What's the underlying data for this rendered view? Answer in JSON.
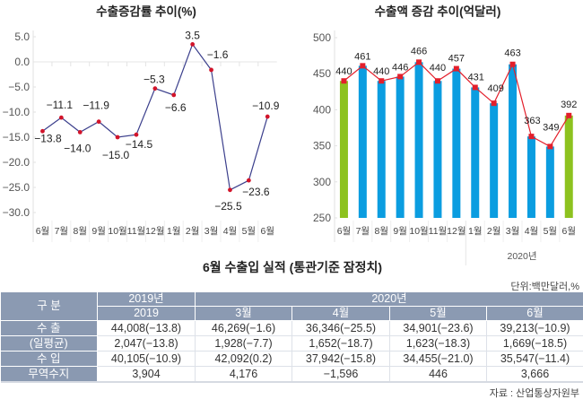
{
  "chart_data": [
    {
      "type": "line",
      "title": "수출증감률 추이(%)",
      "categories": [
        "6월",
        "7월",
        "8월",
        "9월",
        "10월",
        "11월",
        "12월",
        "1월",
        "2월",
        "3월",
        "4월",
        "5월",
        "6월"
      ],
      "series": [
        {
          "name": "수출증감률(%)",
          "values": [
            -13.8,
            -11.1,
            -14.0,
            -11.9,
            -15.0,
            -14.5,
            -5.3,
            -6.6,
            3.5,
            -1.6,
            -25.5,
            -23.6,
            -10.9
          ],
          "value_labels": [
            "−13.8",
            "−11.1",
            "−14.0",
            "−11.9",
            "−15.0",
            "−14.5",
            "−5.3",
            "−6.6",
            "3.5",
            "−1.6",
            "−25.5",
            "−23.6",
            "−10.9"
          ],
          "line_color": "#3b3f8c",
          "marker_color": "#d2142a"
        }
      ],
      "ylim": [
        -30,
        5
      ],
      "yticks": [
        5,
        0,
        -5,
        -10,
        -15,
        -20,
        -25,
        -30
      ],
      "ytick_labels": [
        "5.0",
        "0.0",
        "−5.0",
        "−10.0",
        "−15.0",
        "−20.0",
        "−25.0",
        "−30.0"
      ],
      "xlabel": "",
      "ylabel": "",
      "grid": "zero line only",
      "legend": "none"
    },
    {
      "type": "bar",
      "title": "수출액 증감 추이(억달러)",
      "categories": [
        "6월",
        "7월",
        "8월",
        "9월",
        "10월",
        "11월",
        "12월",
        "1월",
        "2월",
        "3월",
        "4월",
        "5월",
        "6월"
      ],
      "values": [
        440,
        461,
        440,
        446,
        466,
        440,
        457,
        431,
        409,
        463,
        363,
        349,
        392
      ],
      "value_labels": [
        "440",
        "461",
        "440",
        "446",
        "466",
        "440",
        "457",
        "431",
        "409",
        "463",
        "363",
        "349",
        "392"
      ],
      "ylim": [
        250,
        500
      ],
      "yticks": [
        500,
        450,
        400,
        350,
        300,
        250
      ],
      "ytick_labels": [
        "500",
        "450",
        "400",
        "350",
        "300",
        "250"
      ],
      "bar_color": "#0b9de0",
      "highlight_color": "#8dc21f",
      "highlight_indices": [
        0,
        12
      ],
      "overlay_line_color": "#e31f2b",
      "group_label": "2020년",
      "group_start_index": 7,
      "xlabel": "",
      "ylabel": "",
      "grid": "none",
      "legend": "none"
    }
  ],
  "table": {
    "title": "6월 수출입 실적 (통관기준 잠정치)",
    "unit": "단위:백만달러,%",
    "source": "자료 : 산업통상자원부",
    "header": {
      "category": "구 분",
      "years": [
        "2019년",
        "2020년"
      ],
      "months": [
        "2019",
        "3월",
        "4월",
        "5월",
        "6월"
      ]
    },
    "rows": [
      {
        "label": "수 출",
        "cells": [
          "44,008(−13.8)",
          "46,269(−1.6)",
          "36,346(−25.5)",
          "34,901(−23.6)",
          "39,213(−10.9)"
        ]
      },
      {
        "label": "(일평균)",
        "cells": [
          "2,047(−13.8)",
          "1,928(−7.7)",
          "1,652(−18.7)",
          "1,623(−18.3)",
          "1,669(−18.5)"
        ]
      },
      {
        "label": "수 입",
        "cells": [
          "40,105(−10.9)",
          "42,092(0.2)",
          "37,942(−15.8)",
          "34,455(−21.0)",
          "35,547(−11.4)"
        ]
      },
      {
        "label": "무역수지",
        "cells": [
          "3,904",
          "4,176",
          "−1,596",
          "446",
          "3,666"
        ]
      }
    ]
  }
}
